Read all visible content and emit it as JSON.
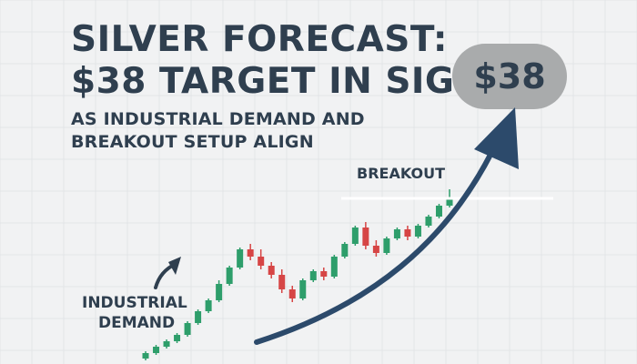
{
  "headline": {
    "line1": "SILVER FORECAST:",
    "line2": "$38 TARGET IN SIGHT"
  },
  "subheadline": {
    "line1": "AS INDUSTRIAL DEMAND AND",
    "line2": "BREAKOUT SETUP ALIGN"
  },
  "badge": {
    "label": "$38"
  },
  "annotations": {
    "breakout": "BREAKOUT",
    "industrial_line1": "INDUSTRIAL",
    "industrial_line2": "DEMAND"
  },
  "colors": {
    "bullish": "#2e9e6b",
    "bearish": "#d64545",
    "arrow": "#2c4a6b",
    "text": "#2f3f4f",
    "badge": "#a9abac"
  },
  "icons": [
    "up-arrow-icon",
    "curved-arrow-icon"
  ],
  "chart_data": {
    "type": "candlestick",
    "candles": [
      {
        "open": 6,
        "close": 12,
        "high": 14,
        "low": 4
      },
      {
        "open": 12,
        "close": 19,
        "high": 21,
        "low": 10
      },
      {
        "open": 19,
        "close": 25,
        "high": 27,
        "low": 17
      },
      {
        "open": 25,
        "close": 32,
        "high": 34,
        "low": 23
      },
      {
        "open": 32,
        "close": 45,
        "high": 47,
        "low": 30
      },
      {
        "open": 45,
        "close": 58,
        "high": 60,
        "low": 43
      },
      {
        "open": 58,
        "close": 70,
        "high": 72,
        "low": 56
      },
      {
        "open": 70,
        "close": 88,
        "high": 92,
        "low": 68
      },
      {
        "open": 88,
        "close": 106,
        "high": 108,
        "low": 86
      },
      {
        "open": 106,
        "close": 126,
        "high": 128,
        "low": 104
      },
      {
        "open": 126,
        "close": 118,
        "high": 132,
        "low": 114
      },
      {
        "open": 118,
        "close": 108,
        "high": 126,
        "low": 104
      },
      {
        "open": 108,
        "close": 98,
        "high": 112,
        "low": 94
      },
      {
        "open": 98,
        "close": 82,
        "high": 104,
        "low": 78
      },
      {
        "open": 82,
        "close": 72,
        "high": 86,
        "low": 68
      },
      {
        "open": 72,
        "close": 92,
        "high": 94,
        "low": 70
      },
      {
        "open": 92,
        "close": 102,
        "high": 104,
        "low": 90
      },
      {
        "open": 102,
        "close": 96,
        "high": 106,
        "low": 92
      },
      {
        "open": 96,
        "close": 118,
        "high": 120,
        "low": 94
      },
      {
        "open": 118,
        "close": 132,
        "high": 134,
        "low": 116
      },
      {
        "open": 132,
        "close": 150,
        "high": 152,
        "low": 130
      },
      {
        "open": 150,
        "close": 130,
        "high": 156,
        "low": 126
      },
      {
        "open": 130,
        "close": 122,
        "high": 136,
        "low": 118
      },
      {
        "open": 122,
        "close": 138,
        "high": 140,
        "low": 120
      },
      {
        "open": 138,
        "close": 148,
        "high": 150,
        "low": 136
      },
      {
        "open": 148,
        "close": 140,
        "high": 152,
        "low": 136
      },
      {
        "open": 140,
        "close": 152,
        "high": 154,
        "low": 138
      },
      {
        "open": 152,
        "close": 162,
        "high": 164,
        "low": 150
      },
      {
        "open": 162,
        "close": 174,
        "high": 176,
        "low": 160
      },
      {
        "open": 174,
        "close": 182,
        "high": 192,
        "low": 172
      }
    ],
    "breakout_level": 182,
    "ylim": [
      0,
      200
    ]
  }
}
